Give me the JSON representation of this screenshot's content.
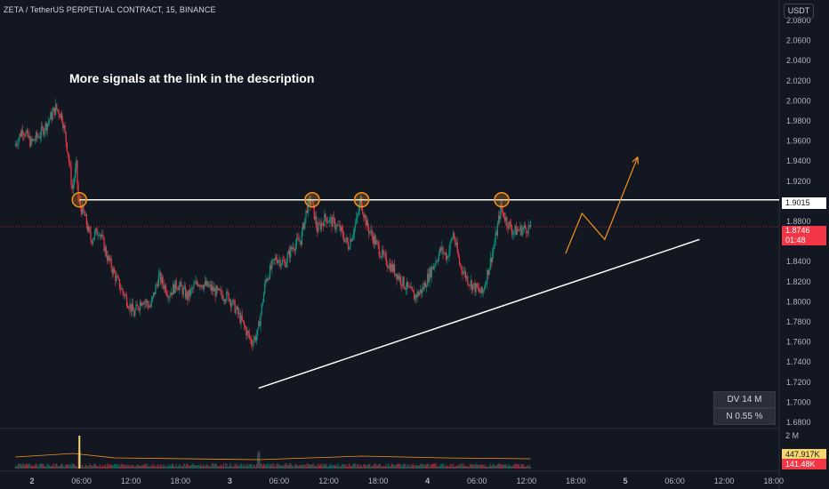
{
  "header": {
    "title": "ZETA / TetherUS PERPETUAL CONTRACT, 15, BINANCE"
  },
  "currency_button": {
    "label": "USDT"
  },
  "annotation": {
    "text": "More signals at the link in the description"
  },
  "price_tags": {
    "resistance": "1.9015",
    "last_price": "1.8746",
    "countdown": "01:48"
  },
  "volume_tags": {
    "scale_max": "2 M",
    "ma": "447.917K",
    "volume": "141.48K"
  },
  "stats": {
    "dv": "DV 14 M",
    "n": "N 0.55 %"
  },
  "colors": {
    "background": "#131722",
    "up": "#089981",
    "down": "#f23645",
    "grid": "#1e222d",
    "resistance": "#ffffff",
    "trendline": "#ffffff",
    "projection": "#f7931a",
    "volume_ma": "#f7931a"
  },
  "chart_data": {
    "type": "candlestick",
    "y_ticks": [
      "2.0800",
      "2.0600",
      "2.0400",
      "2.0200",
      "2.0000",
      "1.9800",
      "1.9600",
      "1.9400",
      "1.9200",
      "1.9000",
      "1.8800",
      "1.8600",
      "1.8400",
      "1.8200",
      "1.8000",
      "1.7800",
      "1.7600",
      "1.7400",
      "1.7200",
      "1.7000",
      "1.6800"
    ],
    "ylim": [
      1.68,
      2.08
    ],
    "x_ticks": [
      {
        "label": "2",
        "t": 0
      },
      {
        "label": "06:00",
        "t": 24
      },
      {
        "label": "12:00",
        "t": 48
      },
      {
        "label": "18:00",
        "t": 72
      },
      {
        "label": "3",
        "t": 96
      },
      {
        "label": "06:00",
        "t": 120
      },
      {
        "label": "12:00",
        "t": 144
      },
      {
        "label": "18:00",
        "t": 168
      },
      {
        "label": "4",
        "t": 192
      },
      {
        "label": "06:00",
        "t": 216
      },
      {
        "label": "12:00",
        "t": 240
      },
      {
        "label": "18:00",
        "t": 264
      },
      {
        "label": "5",
        "t": 288
      },
      {
        "label": "06:00",
        "t": 312
      },
      {
        "label": "12:00",
        "t": 336
      },
      {
        "label": "18:00",
        "t": 360
      }
    ],
    "resistance_level": 1.9015,
    "last_price": 1.8746,
    "touch_points": [
      {
        "t": 23,
        "p": 1.9015
      },
      {
        "t": 136,
        "p": 1.9015
      },
      {
        "t": 160,
        "p": 1.9015
      },
      {
        "t": 228,
        "p": 1.9015
      }
    ],
    "trendline": [
      {
        "t": 110,
        "p": 1.714
      },
      {
        "t": 324,
        "p": 1.862
      }
    ],
    "projection": [
      {
        "t": 259,
        "p": 1.848
      },
      {
        "t": 267,
        "p": 1.888
      },
      {
        "t": 278,
        "p": 1.862
      },
      {
        "t": 294,
        "p": 1.944
      }
    ],
    "price_path": [
      {
        "t": -8,
        "p": 1.955
      },
      {
        "t": -4,
        "p": 1.972
      },
      {
        "t": 0,
        "p": 1.958
      },
      {
        "t": 4,
        "p": 1.966
      },
      {
        "t": 8,
        "p": 1.978
      },
      {
        "t": 12,
        "p": 1.993
      },
      {
        "t": 15,
        "p": 1.985
      },
      {
        "t": 18,
        "p": 1.948
      },
      {
        "t": 20,
        "p": 1.912
      },
      {
        "t": 22,
        "p": 1.935
      },
      {
        "t": 23,
        "p": 1.9
      },
      {
        "t": 26,
        "p": 1.885
      },
      {
        "t": 29,
        "p": 1.862
      },
      {
        "t": 33,
        "p": 1.872
      },
      {
        "t": 37,
        "p": 1.845
      },
      {
        "t": 42,
        "p": 1.82
      },
      {
        "t": 47,
        "p": 1.8
      },
      {
        "t": 50,
        "p": 1.788
      },
      {
        "t": 54,
        "p": 1.803
      },
      {
        "t": 58,
        "p": 1.795
      },
      {
        "t": 62,
        "p": 1.825
      },
      {
        "t": 67,
        "p": 1.808
      },
      {
        "t": 71,
        "p": 1.818
      },
      {
        "t": 76,
        "p": 1.805
      },
      {
        "t": 81,
        "p": 1.82
      },
      {
        "t": 86,
        "p": 1.815
      },
      {
        "t": 91,
        "p": 1.808
      },
      {
        "t": 96,
        "p": 1.805
      },
      {
        "t": 100,
        "p": 1.79
      },
      {
        "t": 104,
        "p": 1.773
      },
      {
        "t": 107,
        "p": 1.76
      },
      {
        "t": 110,
        "p": 1.768
      },
      {
        "t": 114,
        "p": 1.822
      },
      {
        "t": 119,
        "p": 1.844
      },
      {
        "t": 123,
        "p": 1.838
      },
      {
        "t": 127,
        "p": 1.855
      },
      {
        "t": 131,
        "p": 1.862
      },
      {
        "t": 134,
        "p": 1.894
      },
      {
        "t": 136,
        "p": 1.901
      },
      {
        "t": 139,
        "p": 1.872
      },
      {
        "t": 143,
        "p": 1.884
      },
      {
        "t": 147,
        "p": 1.878
      },
      {
        "t": 150,
        "p": 1.872
      },
      {
        "t": 154,
        "p": 1.856
      },
      {
        "t": 158,
        "p": 1.88
      },
      {
        "t": 160,
        "p": 1.901
      },
      {
        "t": 163,
        "p": 1.876
      },
      {
        "t": 167,
        "p": 1.86
      },
      {
        "t": 171,
        "p": 1.844
      },
      {
        "t": 176,
        "p": 1.832
      },
      {
        "t": 181,
        "p": 1.818
      },
      {
        "t": 186,
        "p": 1.805
      },
      {
        "t": 190,
        "p": 1.812
      },
      {
        "t": 195,
        "p": 1.835
      },
      {
        "t": 199,
        "p": 1.852
      },
      {
        "t": 202,
        "p": 1.845
      },
      {
        "t": 205,
        "p": 1.868
      },
      {
        "t": 208,
        "p": 1.838
      },
      {
        "t": 212,
        "p": 1.822
      },
      {
        "t": 215,
        "p": 1.815
      },
      {
        "t": 219,
        "p": 1.808
      },
      {
        "t": 222,
        "p": 1.832
      },
      {
        "t": 225,
        "p": 1.858
      },
      {
        "t": 228,
        "p": 1.893
      },
      {
        "t": 231,
        "p": 1.88
      },
      {
        "t": 234,
        "p": 1.87
      },
      {
        "t": 238,
        "p": 1.872
      },
      {
        "t": 242,
        "p": 1.874
      }
    ]
  }
}
